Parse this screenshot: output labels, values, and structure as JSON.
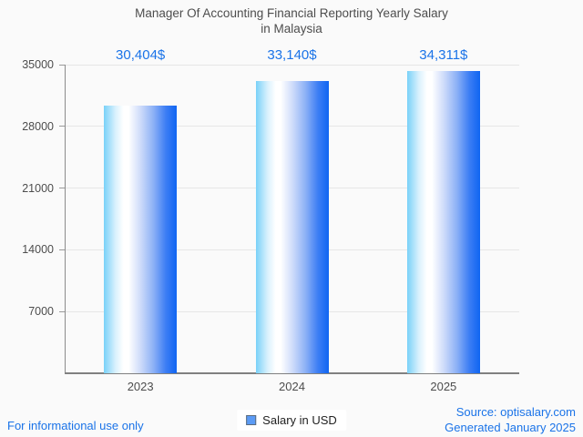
{
  "title": {
    "line1": "Manager Of Accounting Financial Reporting Yearly Salary",
    "line2": "in Malaysia"
  },
  "chart_data": {
    "type": "bar",
    "title": "Manager Of Accounting Financial Reporting Yearly Salary in Malaysia",
    "categories": [
      "2023",
      "2024",
      "2025"
    ],
    "values": [
      30404,
      33140,
      34311
    ],
    "value_labels": [
      "30,404$",
      "33,140$",
      "34,311$"
    ],
    "xlabel": "",
    "ylabel": "",
    "ylim": [
      0,
      35000
    ],
    "yticks": [
      35000,
      28000,
      21000,
      14000,
      7000
    ],
    "ytick_labels": [
      "35000",
      "28000",
      "21000",
      "14000",
      "7000"
    ],
    "grid": true,
    "legend": {
      "label": "Salary in USD",
      "position": "bottom-center"
    },
    "colors": {
      "bar_gradient": [
        "#79d1f8",
        "#ffffff",
        "#0f65f2"
      ],
      "value_label": "#1a73e8",
      "axis": "#808080",
      "gridline": "#e6e6e6",
      "tick_text": "#4d4d4d",
      "legend_swatch": "#5b9bf5"
    }
  },
  "footer": {
    "disclaimer": "For informational use only",
    "source": "Source: optisalary.com",
    "generated": "Generated January 2025"
  }
}
